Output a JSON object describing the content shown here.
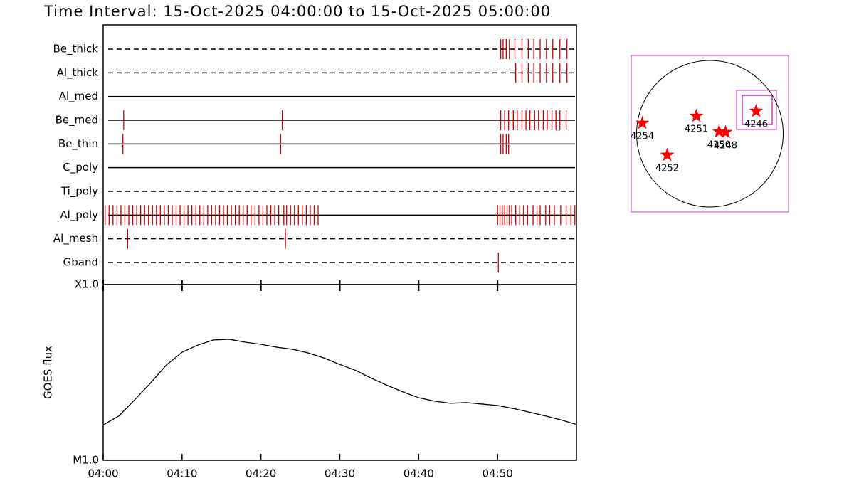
{
  "chart_data": [
    {
      "type": "timeline",
      "title": "Time Interval: 15-Oct-2025 04:00:00 to 15-Oct-2025 05:00:00",
      "xlim": [
        0,
        60
      ],
      "tick_color": "#cc0000",
      "rows": [
        {
          "name": "Be_thick",
          "style": "dashed",
          "times": [
            50.4,
            50.7,
            51.1,
            51.5,
            52.2,
            53.1,
            53.9,
            54.6,
            55.4,
            56.2,
            57.0,
            57.9,
            58.8
          ]
        },
        {
          "name": "Al_thick",
          "style": "dashed",
          "times": [
            52.3,
            53.1,
            53.9,
            54.6,
            55.4,
            56.2,
            57.0,
            57.9,
            58.8
          ]
        },
        {
          "name": "Al_med",
          "style": "solid",
          "times": []
        },
        {
          "name": "Be_med",
          "style": "solid",
          "times": [
            2.6,
            22.7,
            50.4,
            50.9,
            51.4,
            52.0,
            52.5,
            53.1,
            53.6,
            54.1,
            54.7,
            55.2,
            55.8,
            56.3,
            56.9,
            57.4,
            57.9,
            58.7
          ]
        },
        {
          "name": "Be_thin",
          "style": "solid",
          "times": [
            2.5,
            22.5,
            50.4,
            50.7,
            51.1,
            51.4
          ]
        },
        {
          "name": "C_poly",
          "style": "solid",
          "times": []
        },
        {
          "name": "Ti_poly",
          "style": "dashed",
          "times": []
        },
        {
          "name": "Al_poly",
          "style": "solid",
          "times": [
            0.25,
            0.75,
            1.25,
            1.75,
            2.25,
            2.75,
            3.25,
            3.75,
            4.25,
            4.75,
            5.25,
            5.75,
            6.25,
            6.75,
            7.25,
            7.75,
            8.25,
            8.75,
            9.25,
            9.75,
            10.25,
            10.75,
            11.25,
            11.75,
            12.25,
            12.75,
            13.25,
            13.75,
            14.25,
            14.75,
            15.25,
            15.75,
            16.25,
            16.75,
            17.25,
            17.75,
            18.25,
            18.75,
            19.25,
            19.75,
            20.25,
            20.75,
            21.25,
            21.75,
            22.25,
            22.9,
            23.25,
            23.75,
            24.25,
            24.75,
            25.25,
            25.75,
            26.25,
            26.75,
            27.25,
            50.0,
            50.3,
            50.6,
            50.9,
            51.2,
            51.5,
            51.8,
            52.3,
            52.8,
            53.3,
            53.8,
            54.5,
            55.0,
            55.4,
            56.1,
            56.6,
            57.2,
            58.0,
            58.7,
            59.3,
            59.8
          ]
        },
        {
          "name": "Al_mesh",
          "style": "dashed",
          "times": [
            3.1,
            23.1
          ]
        },
        {
          "name": "Gband",
          "style": "dashed",
          "times": [
            50.1
          ]
        }
      ]
    },
    {
      "type": "line",
      "ylabel": "GOES flux",
      "log": true,
      "color": "#000000",
      "x": [
        0,
        2,
        4,
        6,
        8,
        10,
        12,
        14,
        16,
        18,
        20,
        22,
        24,
        26,
        28,
        30,
        32,
        34,
        36,
        38,
        40,
        42,
        44,
        46,
        48,
        50,
        52,
        54,
        56,
        58,
        60
      ],
      "values": [
        1.59e-05,
        1.79e-05,
        2.21e-05,
        2.75e-05,
        3.48e-05,
        4.12e-05,
        4.53e-05,
        4.84e-05,
        4.88e-05,
        4.7e-05,
        4.57e-05,
        4.4e-05,
        4.28e-05,
        4.08e-05,
        3.82e-05,
        3.51e-05,
        3.25e-05,
        2.93e-05,
        2.67e-05,
        2.45e-05,
        2.27e-05,
        2.17e-05,
        2.11e-05,
        2.13e-05,
        2.09e-05,
        2.05e-05,
        1.97e-05,
        1.88e-05,
        1.79e-05,
        1.7e-05,
        1.6e-05
      ],
      "xlim": [
        0,
        60
      ],
      "xticks": [
        {
          "value": 0,
          "label": "04:00"
        },
        {
          "value": 10,
          "label": "04:10"
        },
        {
          "value": 20,
          "label": "04:20"
        },
        {
          "value": 30,
          "label": "04:30"
        },
        {
          "value": 40,
          "label": "04:40"
        },
        {
          "value": 50,
          "label": "04:50"
        }
      ],
      "ylim": [
        1e-05,
        0.0001
      ],
      "yticks": [
        {
          "value": 1e-05,
          "label": "M1.0"
        },
        {
          "value": 0.0001,
          "label": "X1.0"
        }
      ]
    },
    {
      "type": "scatter",
      "color": "#ff0000",
      "frame_color": "#cc33cc",
      "disk_radius": 960,
      "xlim": [
        -1030,
        1030
      ],
      "ylim": [
        -1030,
        1030
      ],
      "labels": [
        "4254",
        "4251",
        "4250",
        "4248",
        "4246",
        "4252"
      ],
      "x": [
        -885,
        -177,
        121,
        205,
        606,
        -559
      ],
      "y": [
        140,
        233,
        28,
        19,
        298,
        -280
      ]
    }
  ]
}
